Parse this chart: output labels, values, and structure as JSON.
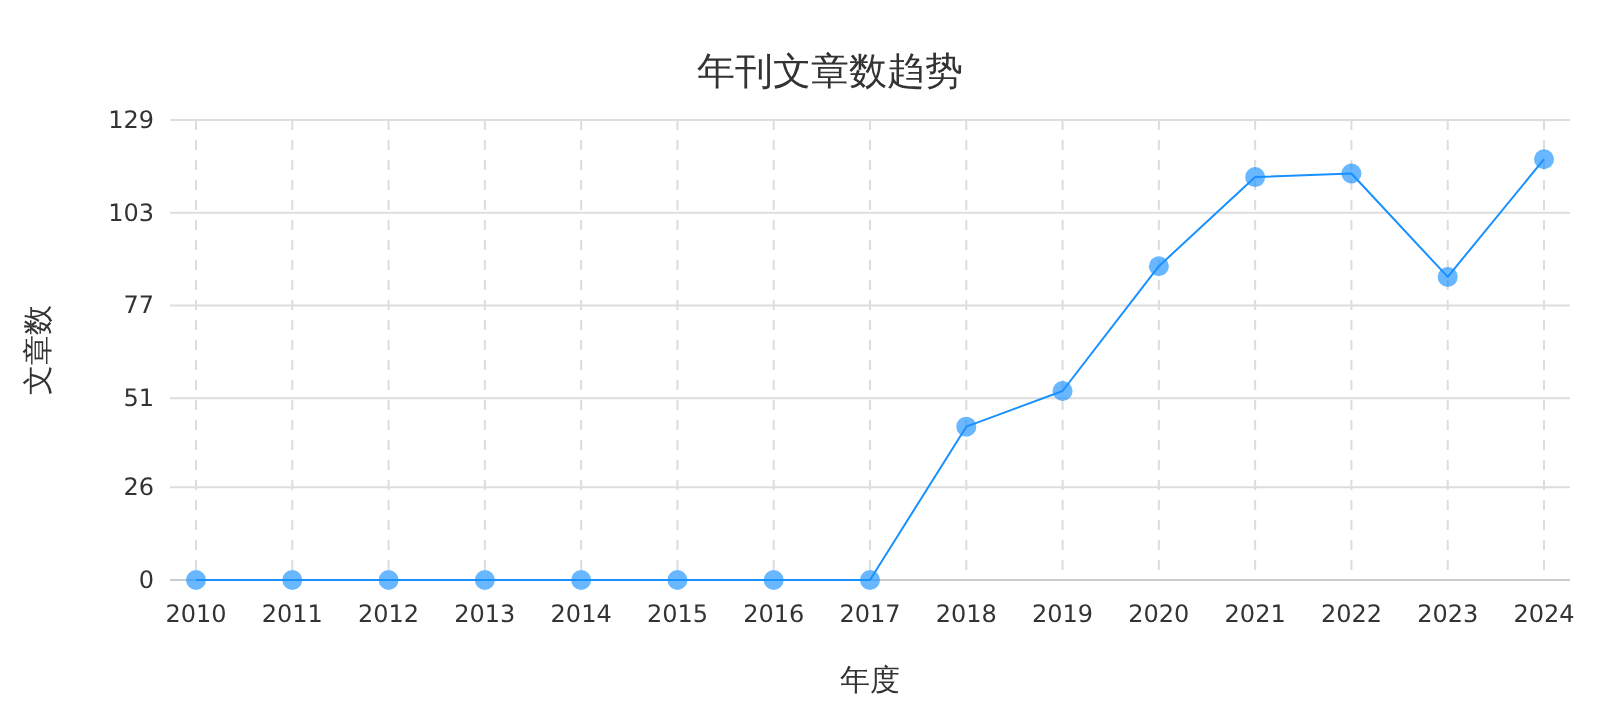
{
  "chart_data": {
    "type": "line",
    "title": "年刊文章数趋势",
    "xlabel": "年度",
    "ylabel": "文章数",
    "categories": [
      "2010",
      "2011",
      "2012",
      "2013",
      "2014",
      "2015",
      "2016",
      "2017",
      "2018",
      "2019",
      "2020",
      "2021",
      "2022",
      "2023",
      "2024"
    ],
    "series": [
      {
        "color": "#1890ff",
        "values": [
          0,
          0,
          0,
          0,
          0,
          0,
          0,
          0,
          43,
          53,
          88,
          113,
          114,
          85,
          118
        ]
      }
    ],
    "ylim": [
      0,
      129
    ],
    "yticks": [
      0,
      26,
      51,
      77,
      103,
      129
    ],
    "grid": true,
    "marker": "circle",
    "line_style": "solid"
  }
}
